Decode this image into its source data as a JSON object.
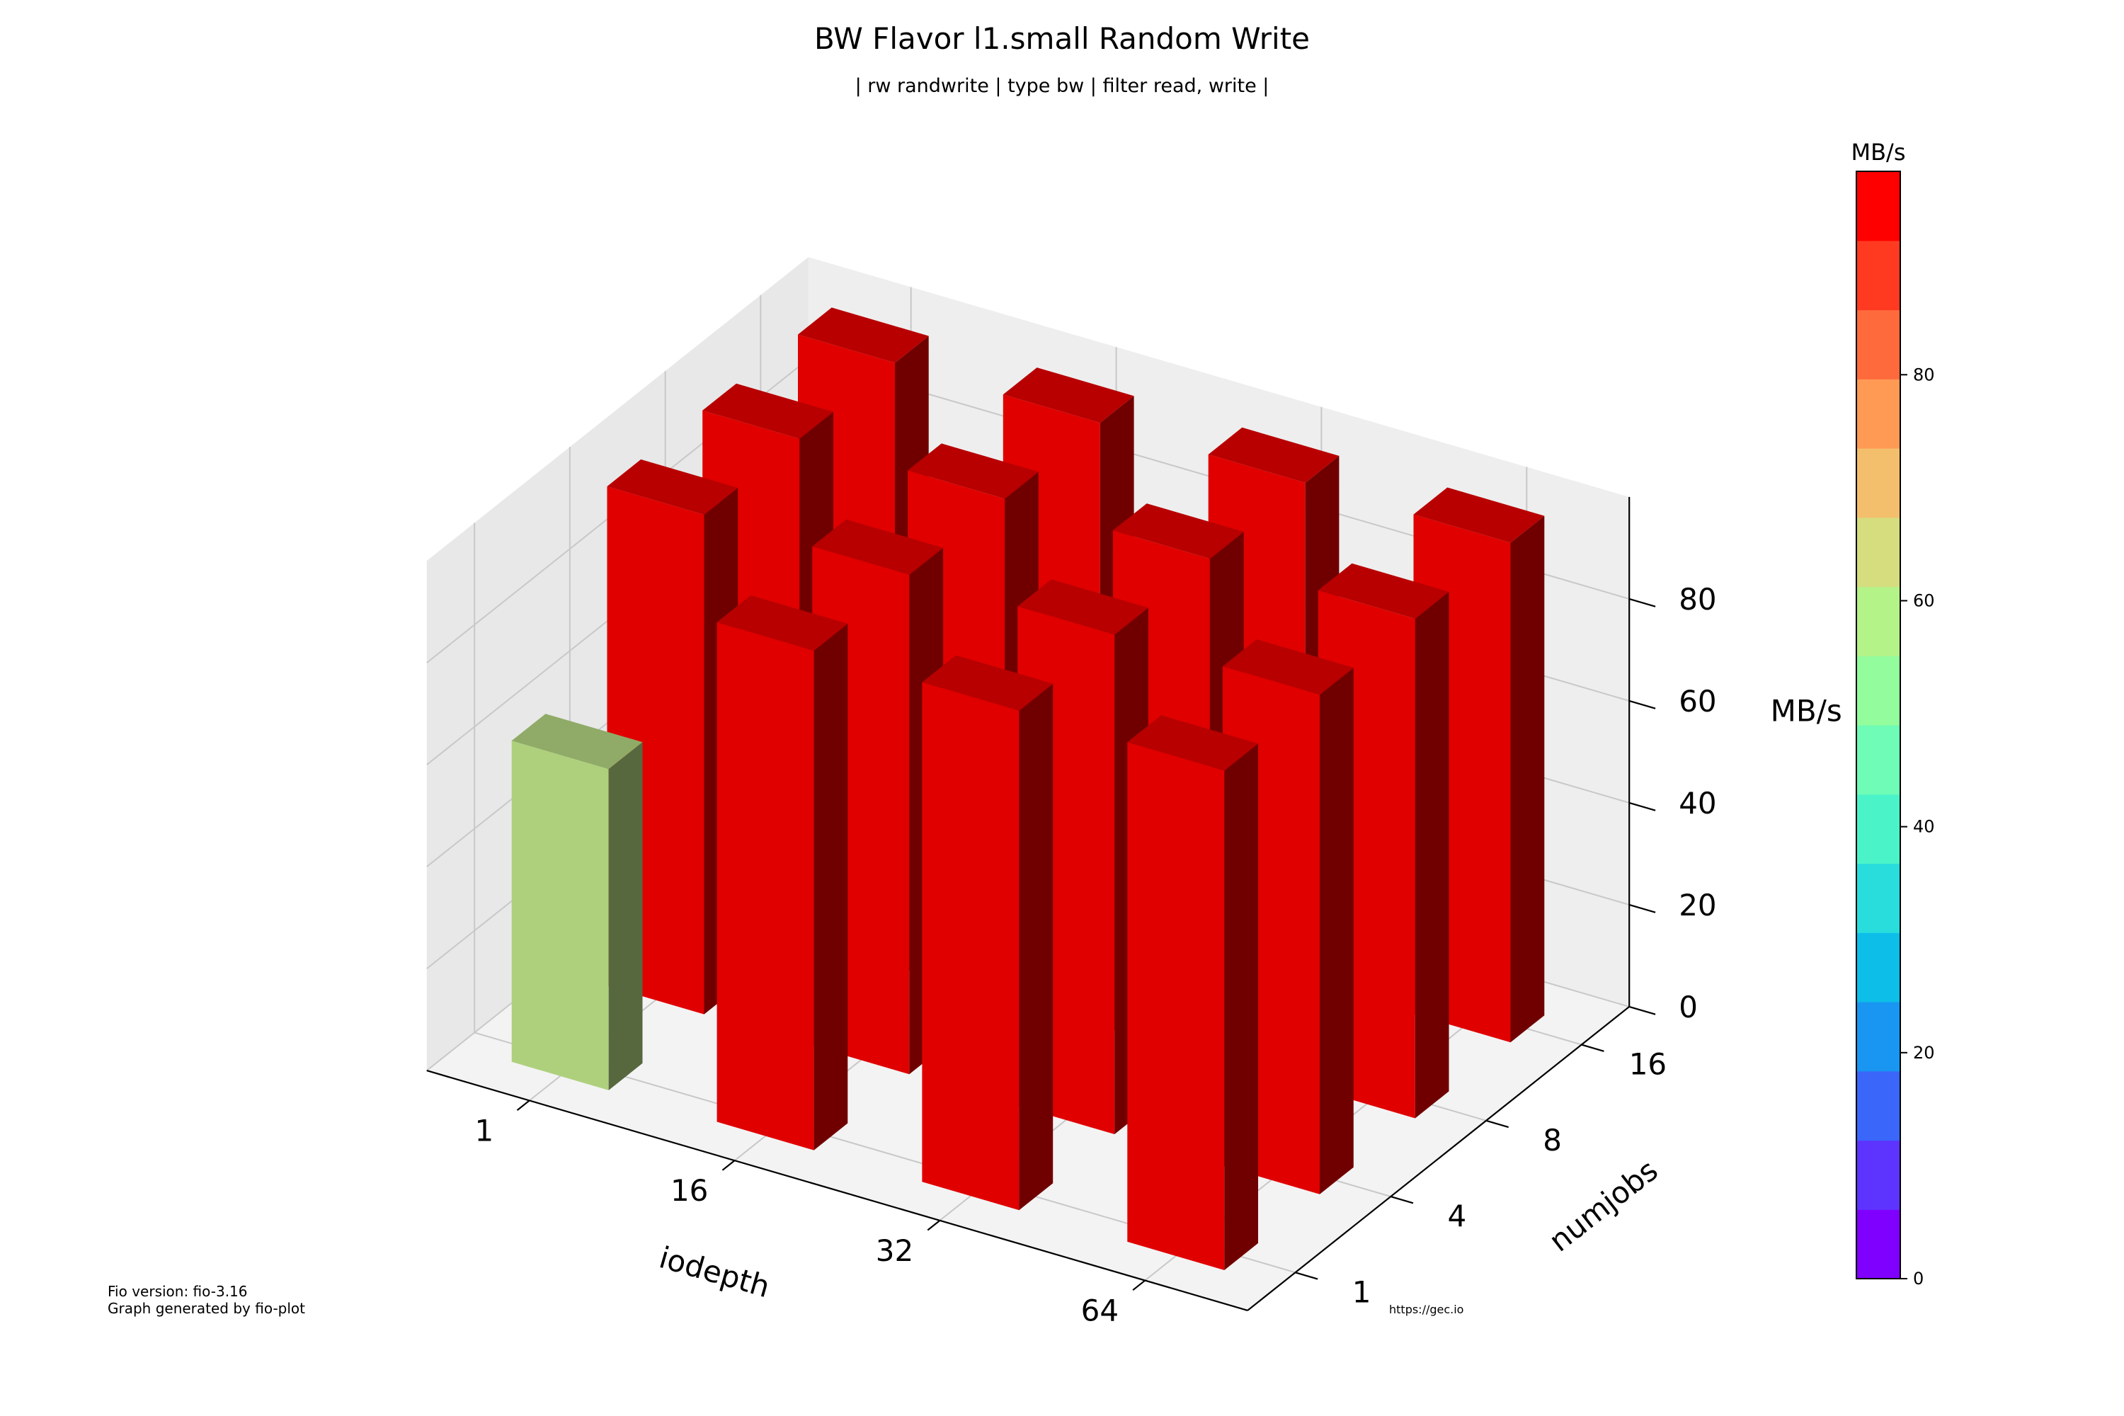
{
  "chart_data": {
    "type": "bar3d",
    "title": "BW Flavor l1.small Random Write",
    "subtitle": "| rw randwrite | type bw | filter read, write |",
    "xlabel": "iodepth",
    "ylabel": "numjobs",
    "zlabel": "MB/s",
    "x_ticks": [
      "1",
      "16",
      "32",
      "64"
    ],
    "y_ticks": [
      "1",
      "4",
      "8",
      "16"
    ],
    "z_ticks": [
      "0",
      "20",
      "40",
      "60",
      "80"
    ],
    "zlim": [
      0,
      100
    ],
    "bars": [
      {
        "x": "1",
        "y": "1",
        "value": 63
      },
      {
        "x": "1",
        "y": "4",
        "value": 98
      },
      {
        "x": "1",
        "y": "8",
        "value": 98
      },
      {
        "x": "1",
        "y": "16",
        "value": 98
      },
      {
        "x": "16",
        "y": "1",
        "value": 98
      },
      {
        "x": "16",
        "y": "4",
        "value": 98
      },
      {
        "x": "16",
        "y": "8",
        "value": 98
      },
      {
        "x": "16",
        "y": "16",
        "value": 98
      },
      {
        "x": "32",
        "y": "1",
        "value": 98
      },
      {
        "x": "32",
        "y": "4",
        "value": 98
      },
      {
        "x": "32",
        "y": "8",
        "value": 98
      },
      {
        "x": "32",
        "y": "16",
        "value": 98
      },
      {
        "x": "64",
        "y": "1",
        "value": 98
      },
      {
        "x": "64",
        "y": "4",
        "value": 98
      },
      {
        "x": "64",
        "y": "8",
        "value": 98
      },
      {
        "x": "64",
        "y": "16",
        "value": 98
      }
    ],
    "colorbar": {
      "label": "MB/s",
      "ticks": [
        "0",
        "20",
        "40",
        "60",
        "80"
      ],
      "min": 0,
      "max": 98,
      "levels": [
        "#8000ff",
        "#5d34fe",
        "#3a66fa",
        "#1896f2",
        "#0cbee8",
        "#28dddc",
        "#4bf4c8",
        "#6efcb6",
        "#93fc9c",
        "#b4f387",
        "#d5dd7f",
        "#f3bf6c",
        "#ff9a54",
        "#ff6a3c",
        "#ff3a20",
        "#ff0000"
      ],
      "bar_color": "#e00000",
      "low_bar_color": "#aed07d"
    }
  },
  "footer": {
    "version_line": "Fio version: fio-3.16",
    "generated_line": "Graph generated by fio-plot",
    "url": "https://gec.io"
  }
}
